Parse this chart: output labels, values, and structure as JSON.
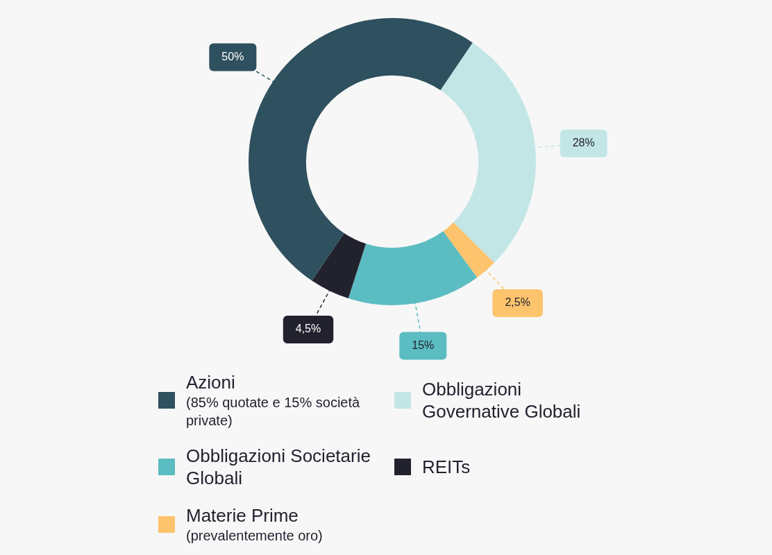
{
  "chart_data": {
    "type": "donut",
    "categories": [
      "Obbligazioni Governative Globali",
      "Materie Prime\n(prevalentemente oro)",
      "Obbligazioni Societarie Globali",
      "REITs",
      "Azioni\n(85% quotate e 15% società private)"
    ],
    "values": [
      28,
      2.5,
      15,
      4.5,
      50
    ],
    "colors": [
      "#c2e6e5",
      "#fdc46d",
      "#5bbcc1",
      "#22222f",
      "#2f505e"
    ],
    "value_labels": [
      "28%",
      "2,5%",
      "15%",
      "4,5%",
      "50%"
    ],
    "legend": "bottom"
  }
}
